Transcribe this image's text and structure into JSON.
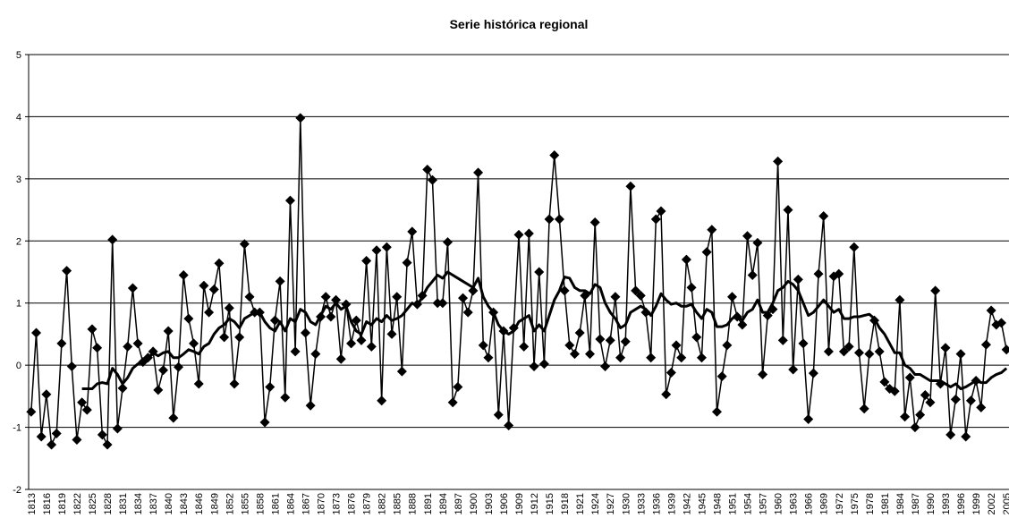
{
  "chart_data": {
    "type": "line",
    "title": "Serie histórica regional",
    "categories": [
      "1813",
      null,
      null,
      "1816",
      null,
      null,
      "1819",
      null,
      null,
      "1822",
      null,
      null,
      "1825",
      null,
      null,
      "1828",
      null,
      null,
      "1831",
      null,
      null,
      "1834",
      null,
      null,
      "1837",
      null,
      null,
      "1840",
      null,
      null,
      "1843",
      null,
      null,
      "1846",
      null,
      null,
      "1849",
      null,
      null,
      "1852",
      null,
      null,
      "1855",
      null,
      null,
      "1858",
      null,
      null,
      "1861",
      null,
      null,
      "1864",
      null,
      null,
      "1867",
      null,
      null,
      "1870",
      null,
      null,
      "1873",
      null,
      null,
      "1876",
      null,
      null,
      "1879",
      null,
      null,
      "1882",
      null,
      null,
      "1885",
      null,
      null,
      "1888",
      null,
      null,
      "1891",
      null,
      null,
      "1894",
      null,
      null,
      "1897",
      null,
      null,
      "1900",
      null,
      null,
      "1903",
      null,
      null,
      "1906",
      null,
      null,
      "1909",
      null,
      null,
      "1912",
      null,
      null,
      "1915",
      null,
      null,
      "1918",
      null,
      null,
      "1921",
      null,
      null,
      "1924",
      null,
      null,
      "1927",
      null,
      null,
      "1930",
      null,
      null,
      "1933",
      null,
      null,
      "1936",
      null,
      null,
      "1939",
      null,
      null,
      "1942",
      null,
      null,
      "1945",
      null,
      null,
      "1948",
      null,
      null,
      "1951",
      null,
      null,
      "1954",
      null,
      null,
      "1957",
      null,
      null,
      "1960",
      null,
      null,
      "1963",
      null,
      null,
      "1966",
      null,
      null,
      "1969",
      null,
      null,
      "1972",
      null,
      null,
      "1975",
      null,
      null,
      "1978",
      null,
      null,
      "1981",
      null,
      null,
      "1984",
      null,
      null,
      "1987",
      null,
      null,
      "1990",
      null,
      null,
      "1993",
      null,
      null,
      "1996",
      null,
      null,
      "1999",
      null,
      null,
      "2002",
      null,
      null,
      "2005"
    ],
    "series": [
      {
        "color": "#000000",
        "marker": "diamond",
        "values": [
          -0.75,
          0.52,
          -1.15,
          -0.47,
          -1.28,
          -1.1,
          0.35,
          1.52,
          -0.02,
          -1.2,
          -0.6,
          -0.72,
          0.58,
          0.28,
          -1.12,
          -1.28,
          2.02,
          -1.02,
          -0.37,
          0.3,
          1.24,
          0.35,
          0.05,
          0.12,
          0.22,
          -0.4,
          -0.08,
          0.55,
          -0.85,
          -0.03,
          1.45,
          0.75,
          0.35,
          -0.3,
          1.28,
          0.85,
          1.22,
          1.64,
          0.45,
          0.92,
          -0.3,
          0.45,
          1.95,
          1.1,
          0.85,
          0.85,
          -0.92,
          -0.35,
          0.72,
          1.35,
          -0.52,
          2.65,
          0.22,
          3.98,
          0.52,
          -0.65,
          0.18,
          0.78,
          1.1,
          0.78,
          1.05,
          0.1,
          0.98,
          0.35,
          0.72,
          0.4,
          1.68,
          0.3,
          1.85,
          -0.57,
          1.9,
          0.5,
          1.1,
          -0.1,
          1.65,
          2.15,
          0.98,
          1.12,
          3.15,
          2.98,
          1.0,
          1.0,
          1.98,
          -0.6,
          -0.35,
          1.08,
          0.85,
          1.2,
          3.1,
          0.32,
          0.12,
          0.85,
          -0.8,
          0.55,
          -0.97,
          0.6,
          2.1,
          0.3,
          2.12,
          -0.02,
          1.5,
          0.02,
          2.35,
          3.38,
          2.35,
          1.2,
          0.32,
          0.18,
          0.52,
          1.12,
          0.18,
          2.3,
          0.42,
          -0.02,
          0.4,
          1.1,
          0.12,
          0.38,
          2.88,
          1.2,
          1.12,
          0.85,
          0.12,
          2.35,
          2.48,
          -0.47,
          -0.12,
          0.32,
          0.12,
          1.7,
          1.25,
          0.45,
          0.12,
          1.82,
          2.18,
          -0.75,
          -0.18,
          0.32,
          1.1,
          0.78,
          0.65,
          2.08,
          1.45,
          1.97,
          -0.15,
          0.8,
          0.9,
          3.28,
          0.4,
          2.5,
          -0.07,
          1.38,
          0.35,
          -0.87,
          -0.13,
          1.47,
          2.4,
          0.22,
          1.43,
          1.47,
          0.22,
          0.3,
          1.9,
          0.2,
          -0.7,
          0.18,
          0.72,
          0.22,
          -0.27,
          -0.38,
          -0.42,
          1.05,
          -0.83,
          -0.2,
          -1.0,
          -0.8,
          -0.48,
          -0.6,
          1.2,
          -0.3,
          0.28,
          -1.12,
          -0.55,
          0.18,
          -1.15,
          -0.57,
          -0.25,
          -0.68,
          0.33,
          0.88,
          0.65,
          0.68,
          0.25
        ]
      },
      {
        "color": "#000000",
        "marker": "none",
        "values": [
          null,
          null,
          null,
          null,
          null,
          null,
          null,
          null,
          null,
          null,
          -0.38,
          -0.38,
          -0.38,
          -0.3,
          -0.28,
          -0.3,
          -0.05,
          -0.15,
          -0.3,
          -0.2,
          -0.05,
          0.02,
          0.05,
          0.1,
          0.2,
          0.15,
          0.2,
          0.22,
          0.12,
          0.12,
          0.18,
          0.25,
          0.22,
          0.18,
          0.3,
          0.35,
          0.5,
          0.6,
          0.65,
          0.75,
          0.7,
          0.6,
          0.75,
          0.8,
          0.85,
          0.85,
          0.7,
          0.6,
          0.55,
          0.7,
          0.55,
          0.75,
          0.7,
          0.9,
          0.85,
          0.7,
          0.65,
          0.8,
          0.95,
          0.9,
          1.0,
          0.9,
          0.95,
          0.7,
          0.55,
          0.5,
          0.7,
          0.65,
          0.75,
          0.7,
          0.8,
          0.72,
          0.75,
          0.8,
          0.9,
          1.0,
          0.95,
          1.1,
          1.25,
          1.35,
          1.45,
          1.4,
          1.5,
          1.45,
          1.4,
          1.35,
          1.3,
          1.25,
          1.4,
          1.1,
          0.95,
          0.85,
          0.65,
          0.55,
          0.5,
          0.55,
          0.7,
          0.75,
          0.8,
          0.55,
          0.65,
          0.55,
          0.8,
          1.05,
          1.2,
          1.42,
          1.4,
          1.25,
          1.2,
          1.2,
          1.15,
          1.3,
          1.25,
          1.0,
          0.85,
          0.75,
          0.6,
          0.65,
          0.85,
          0.9,
          0.95,
          0.9,
          0.8,
          0.95,
          1.15,
          1.05,
          0.98,
          1.0,
          0.95,
          0.95,
          0.98,
          0.85,
          0.75,
          0.9,
          0.85,
          0.62,
          0.62,
          0.65,
          0.75,
          0.8,
          0.72,
          0.85,
          0.9,
          1.05,
          0.85,
          0.85,
          1.0,
          1.2,
          1.25,
          1.35,
          1.3,
          1.2,
          1.0,
          0.8,
          0.85,
          0.95,
          1.05,
          0.95,
          0.85,
          0.9,
          0.75,
          0.75,
          0.78,
          0.78,
          0.8,
          0.82,
          0.75,
          0.6,
          0.5,
          0.35,
          0.2,
          0.2,
          0.0,
          -0.05,
          -0.15,
          -0.15,
          -0.2,
          -0.25,
          -0.25,
          -0.25,
          -0.3,
          -0.35,
          -0.3,
          -0.38,
          -0.35,
          -0.3,
          -0.25,
          -0.28,
          -0.28,
          -0.2,
          -0.15,
          -0.12,
          -0.05
        ]
      }
    ],
    "ylim": [
      -2,
      5
    ],
    "yticks": [
      -2,
      -1,
      0,
      1,
      2,
      3,
      4,
      5
    ],
    "grid": true
  }
}
